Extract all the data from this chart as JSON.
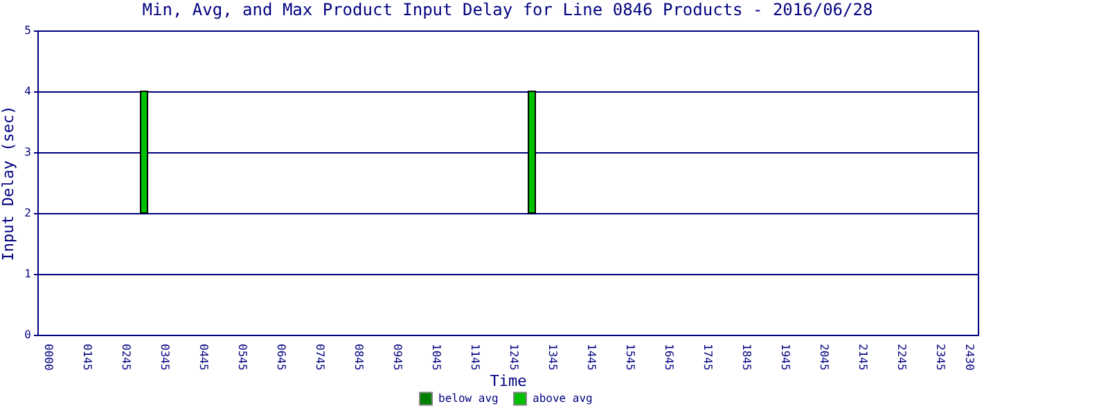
{
  "chart_data": {
    "type": "bar",
    "title": "Min, Avg, and Max Product Input Delay for Line 0846 Products - 2016/06/28",
    "xlabel": "Time",
    "ylabel": "Input Delay (sec)",
    "categories": [
      null,
      "0000",
      null,
      null,
      null,
      "0145",
      null,
      null,
      null,
      "0245",
      null,
      null,
      null,
      "0345",
      null,
      null,
      null,
      "0445",
      null,
      null,
      null,
      "0545",
      null,
      null,
      null,
      "0645",
      null,
      null,
      null,
      "0745",
      null,
      null,
      null,
      "0845",
      null,
      null,
      null,
      "0945",
      null,
      null,
      null,
      "1045",
      null,
      null,
      null,
      "1145",
      null,
      null,
      null,
      "1245",
      null,
      null,
      null,
      "1345",
      null,
      null,
      null,
      "1445",
      null,
      null,
      null,
      "1545",
      null,
      null,
      null,
      "1645",
      null,
      null,
      null,
      "1745",
      null,
      null,
      null,
      "1845",
      null,
      null,
      null,
      "1945",
      null,
      null,
      null,
      "2045",
      null,
      null,
      null,
      "2145",
      null,
      null,
      null,
      "2245",
      null,
      null,
      null,
      "2345",
      null,
      null,
      "2430",
      null
    ],
    "series": [
      {
        "name": "below avg",
        "color": "#008000",
        "values": [
          null,
          null,
          null,
          null,
          null,
          null,
          null,
          null,
          null,
          null,
          null,
          null,
          null,
          null,
          null,
          null,
          null,
          null,
          null,
          null,
          null,
          null,
          null,
          null,
          null,
          null,
          null,
          null,
          null,
          null,
          null,
          null,
          null,
          null,
          null,
          null,
          null,
          null,
          null,
          null,
          null,
          null,
          null,
          null,
          null,
          null,
          null,
          null,
          null,
          null,
          null,
          null,
          null,
          null,
          null,
          null,
          null,
          null,
          null,
          null,
          null,
          null,
          null,
          null,
          null,
          null,
          null,
          null,
          null,
          null,
          null,
          null,
          null,
          null,
          null,
          null,
          null,
          null,
          null,
          null,
          null,
          null,
          null,
          null,
          null,
          null,
          null,
          null,
          null,
          null,
          null,
          null,
          null,
          null,
          null,
          null,
          null,
          null
        ]
      },
      {
        "name": "above avg",
        "color": "#00c000",
        "base": [
          null,
          null,
          null,
          null,
          null,
          null,
          null,
          null,
          null,
          null,
          null,
          2,
          null,
          null,
          null,
          null,
          null,
          null,
          null,
          null,
          null,
          null,
          null,
          null,
          null,
          null,
          null,
          null,
          null,
          null,
          null,
          null,
          null,
          null,
          null,
          null,
          null,
          null,
          null,
          null,
          null,
          null,
          null,
          null,
          null,
          null,
          null,
          null,
          null,
          null,
          null,
          2,
          null,
          null,
          null,
          null,
          null,
          null,
          null,
          null,
          null,
          null,
          null,
          null,
          null,
          null,
          null,
          null,
          null,
          null,
          null,
          null,
          null,
          null,
          null,
          null,
          null,
          null,
          null,
          null,
          null,
          null,
          null,
          null,
          null,
          null,
          null,
          null,
          null,
          null,
          null,
          null,
          null,
          null,
          null,
          null,
          null,
          null
        ],
        "values": [
          null,
          null,
          null,
          null,
          null,
          null,
          null,
          null,
          null,
          null,
          null,
          2,
          null,
          null,
          null,
          null,
          null,
          null,
          null,
          null,
          null,
          null,
          null,
          null,
          null,
          null,
          null,
          null,
          null,
          null,
          null,
          null,
          null,
          null,
          null,
          null,
          null,
          null,
          null,
          null,
          null,
          null,
          null,
          null,
          null,
          null,
          null,
          null,
          null,
          null,
          null,
          2,
          null,
          null,
          null,
          null,
          null,
          null,
          null,
          null,
          null,
          null,
          null,
          null,
          null,
          null,
          null,
          null,
          null,
          null,
          null,
          null,
          null,
          null,
          null,
          null,
          null,
          null,
          null,
          null,
          null,
          null,
          null,
          null,
          null,
          null,
          null,
          null,
          null,
          null,
          null,
          null,
          null,
          null,
          null,
          null,
          null,
          null
        ]
      }
    ],
    "ylim": [
      0,
      5
    ],
    "yticks": [
      0,
      1,
      2,
      3,
      4,
      5
    ],
    "grid": "y",
    "legend": "bottom"
  }
}
